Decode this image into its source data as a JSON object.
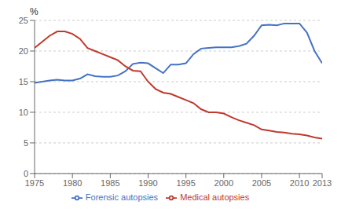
{
  "chart_data": {
    "type": "line",
    "ylabel": "%",
    "x": [
      1975,
      1976,
      1977,
      1978,
      1979,
      1980,
      1981,
      1982,
      1983,
      1984,
      1985,
      1986,
      1987,
      1988,
      1989,
      1990,
      1991,
      1992,
      1993,
      1994,
      1995,
      1996,
      1997,
      1998,
      1999,
      2000,
      2001,
      2002,
      2003,
      2004,
      2005,
      2006,
      2007,
      2008,
      2009,
      2010,
      2011,
      2012,
      2013
    ],
    "series": [
      {
        "name": "Forensic autopsies",
        "color": "#4472C4",
        "values": [
          14.8,
          15.0,
          15.2,
          15.3,
          15.2,
          15.2,
          15.5,
          16.2,
          15.9,
          15.8,
          15.8,
          16.0,
          16.7,
          17.9,
          18.1,
          18.0,
          17.2,
          16.4,
          17.8,
          17.8,
          18.0,
          19.5,
          20.4,
          20.5,
          20.6,
          20.6,
          20.6,
          20.8,
          21.2,
          22.5,
          24.2,
          24.3,
          24.2,
          24.5,
          24.5,
          24.5,
          23.0,
          20.0,
          18.0
        ]
      },
      {
        "name": "Medical autopsies",
        "color": "#C0392B",
        "values": [
          20.5,
          21.5,
          22.5,
          23.2,
          23.2,
          22.8,
          22.0,
          20.5,
          20.0,
          19.5,
          19.0,
          18.5,
          17.5,
          16.8,
          16.7,
          15.0,
          13.8,
          13.2,
          13.0,
          12.5,
          12.0,
          11.5,
          10.5,
          10.0,
          10.0,
          9.8,
          9.2,
          8.7,
          8.3,
          7.9,
          7.2,
          7.0,
          6.8,
          6.7,
          6.5,
          6.4,
          6.2,
          5.9,
          5.7
        ]
      }
    ],
    "xlim": [
      1975,
      2013
    ],
    "xticks": [
      1975,
      1980,
      1985,
      1990,
      1995,
      2000,
      2005,
      2010,
      2013
    ],
    "ylim": [
      0,
      25
    ],
    "yticks": [
      0,
      5,
      10,
      15,
      20,
      25
    ],
    "grid": true,
    "legend": "bottom"
  }
}
